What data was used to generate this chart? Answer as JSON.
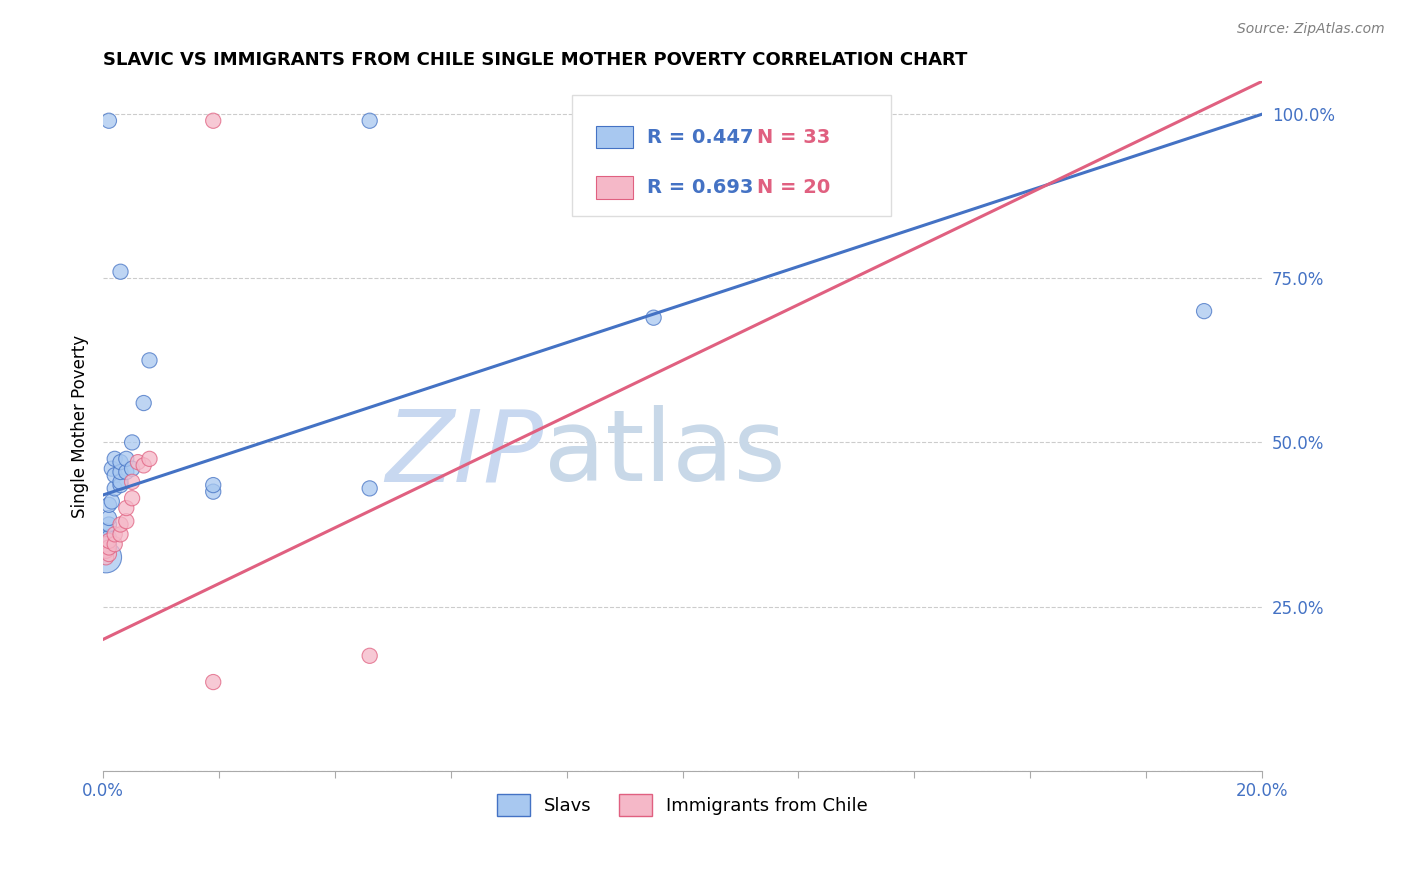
{
  "title": "SLAVIC VS IMMIGRANTS FROM CHILE SINGLE MOTHER POVERTY CORRELATION CHART",
  "source": "Source: ZipAtlas.com",
  "ylabel": "Single Mother Poverty",
  "xlim": [
    0.0,
    0.2
  ],
  "ylim": [
    0.0,
    1.05
  ],
  "R_slavs": 0.447,
  "N_slavs": 33,
  "R_chile": 0.693,
  "N_chile": 20,
  "legend_labels": [
    "Slavs",
    "Immigrants from Chile"
  ],
  "blue_color": "#A8C8F0",
  "pink_color": "#F5B8C8",
  "blue_line_color": "#4472C4",
  "pink_line_color": "#E06080",
  "blue_text_color": "#4472C4",
  "pink_text_color": "#E06080",
  "watermark_zip_color": "#C8D8F0",
  "watermark_atlas_color": "#C8D8E8",
  "background_color": "#FFFFFF",
  "slavs_x": [
    0.0005,
    0.0005,
    0.0005,
    0.0005,
    0.0005,
    0.001,
    0.001,
    0.001,
    0.001,
    0.001,
    0.0015,
    0.0015,
    0.002,
    0.002,
    0.002,
    0.003,
    0.003,
    0.003,
    0.003,
    0.004,
    0.004,
    0.005,
    0.005,
    0.007,
    0.008,
    0.019,
    0.019,
    0.046,
    0.046,
    0.095,
    0.19,
    0.001,
    0.003
  ],
  "slavs_y": [
    0.325,
    0.34,
    0.345,
    0.355,
    0.365,
    0.345,
    0.355,
    0.375,
    0.385,
    0.405,
    0.41,
    0.46,
    0.43,
    0.45,
    0.475,
    0.435,
    0.44,
    0.455,
    0.47,
    0.455,
    0.475,
    0.46,
    0.5,
    0.56,
    0.625,
    0.425,
    0.435,
    0.43,
    0.99,
    0.69,
    0.7,
    0.99,
    0.76
  ],
  "slavs_sizes": [
    500,
    180,
    120,
    120,
    120,
    120,
    120,
    120,
    120,
    120,
    120,
    120,
    120,
    120,
    120,
    120,
    120,
    120,
    120,
    120,
    120,
    120,
    120,
    120,
    120,
    120,
    120,
    120,
    120,
    120,
    120,
    120,
    120
  ],
  "chile_x": [
    0.0005,
    0.0005,
    0.0005,
    0.001,
    0.001,
    0.001,
    0.002,
    0.002,
    0.003,
    0.003,
    0.004,
    0.004,
    0.005,
    0.005,
    0.006,
    0.007,
    0.008,
    0.019,
    0.019,
    0.046
  ],
  "chile_y": [
    0.325,
    0.335,
    0.345,
    0.33,
    0.34,
    0.35,
    0.345,
    0.36,
    0.36,
    0.375,
    0.38,
    0.4,
    0.415,
    0.44,
    0.47,
    0.465,
    0.475,
    0.99,
    0.135,
    0.175
  ],
  "chile_sizes": [
    120,
    120,
    120,
    120,
    120,
    120,
    120,
    120,
    120,
    120,
    120,
    120,
    120,
    120,
    120,
    120,
    120,
    120,
    120,
    120
  ]
}
